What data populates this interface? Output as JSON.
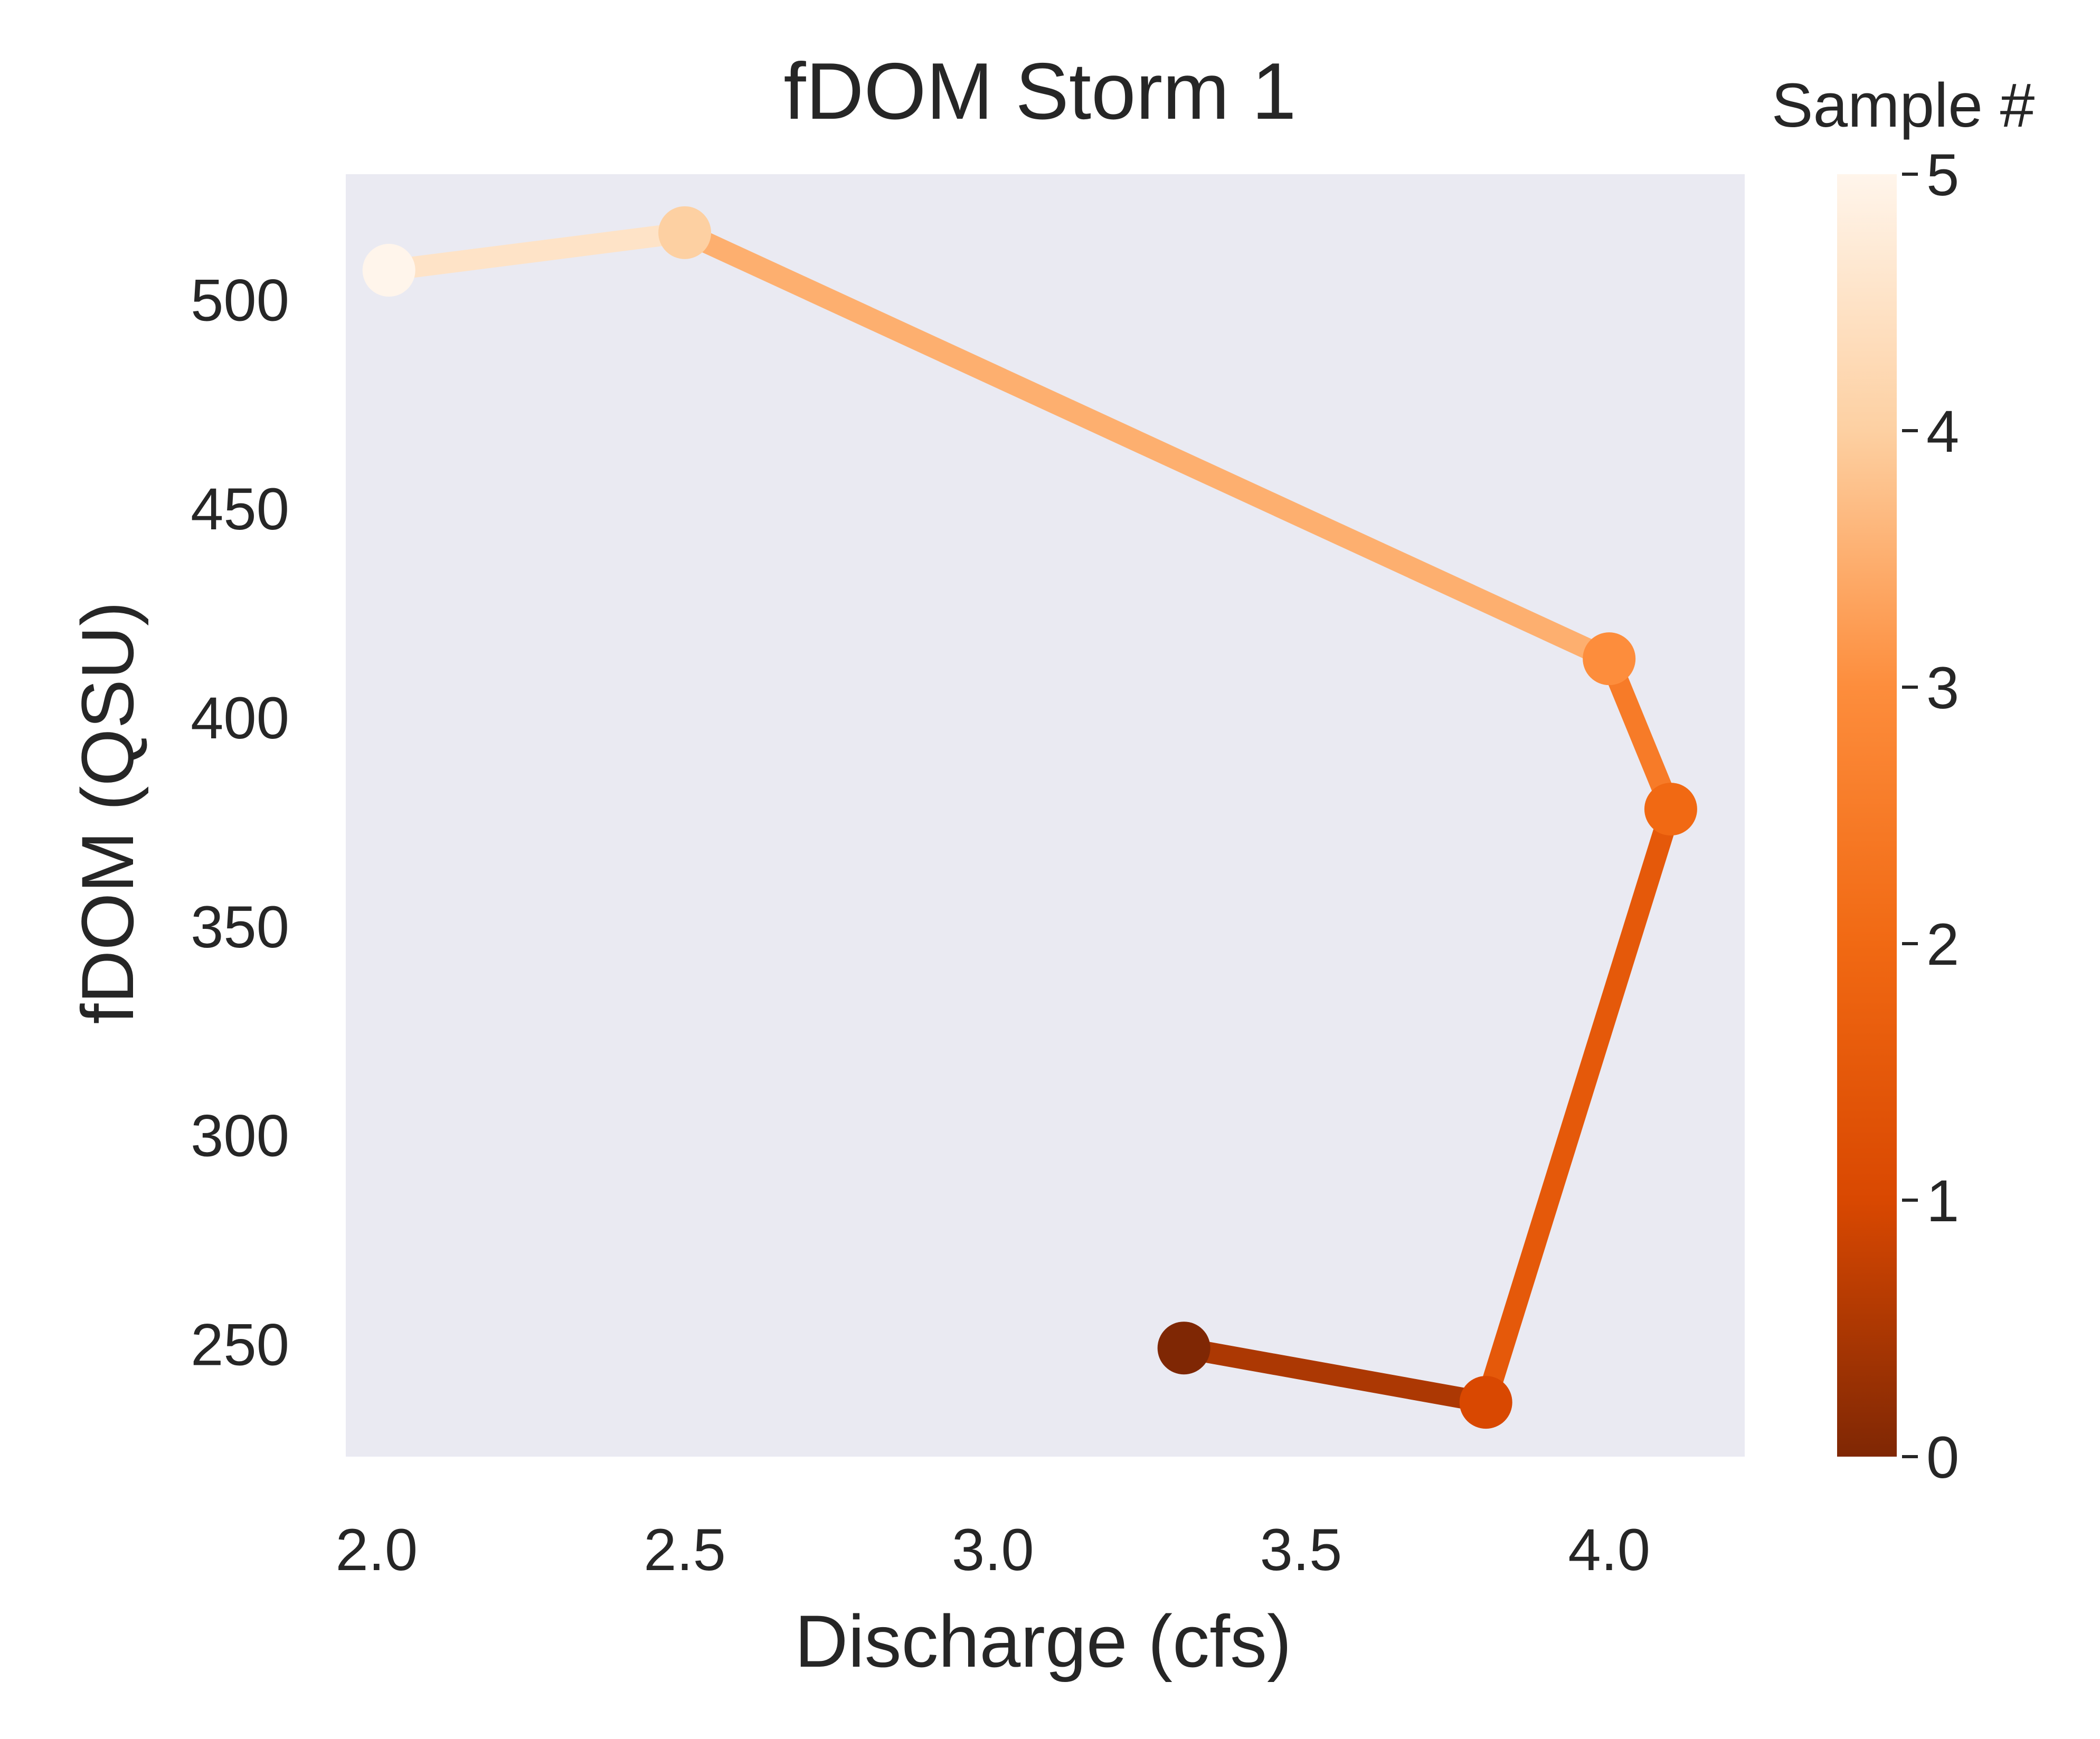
{
  "chart_data": {
    "type": "line",
    "title": "fDOM Storm 1",
    "xlabel": "Discharge (cfs)",
    "ylabel": "fDOM (QSU)",
    "xlim": [
      1.95,
      4.22
    ],
    "ylim": [
      223,
      530
    ],
    "xticks": [
      2.0,
      2.5,
      3.0,
      3.5,
      4.0
    ],
    "xtick_labels": [
      "2.0",
      "2.5",
      "3.0",
      "3.5",
      "4.0"
    ],
    "yticks": [
      250,
      300,
      350,
      400,
      450,
      500
    ],
    "ytick_labels": [
      "250",
      "300",
      "350",
      "400",
      "450",
      "500"
    ],
    "grid": false,
    "background": "#eaeaf2",
    "colormap": "Oranges_r",
    "series": [
      {
        "sample": [
          0,
          1,
          2,
          3,
          4,
          5
        ],
        "x": [
          3.31,
          3.8,
          4.1,
          4.0,
          2.5,
          2.02
        ],
        "y": [
          249,
          236,
          378,
          414,
          516,
          507
        ]
      }
    ],
    "colorbar": {
      "label": "Sample #",
      "range": [
        0,
        5
      ],
      "ticks": [
        0,
        1,
        2,
        3,
        4,
        5
      ],
      "tick_labels": [
        "0",
        "1",
        "2",
        "3",
        "4",
        "5"
      ],
      "stops": [
        "#7f2704",
        "#d94801",
        "#f16913",
        "#fd8d3c",
        "#fdd0a2",
        "#fff5eb"
      ]
    }
  }
}
